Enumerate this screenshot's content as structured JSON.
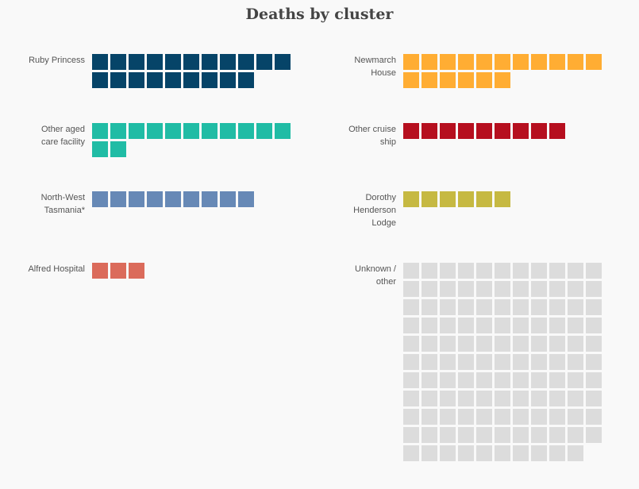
{
  "chart_data": {
    "type": "waffle",
    "title": "Deaths by cluster",
    "unit_per_square": 1,
    "columns_per_row": 11,
    "series": [
      {
        "name": "Ruby Princess",
        "value": 20,
        "color": "#064468"
      },
      {
        "name": "Newmarch\nHouse",
        "value": 17,
        "color": "#ffad33"
      },
      {
        "name": "Other aged\ncare facility",
        "value": 13,
        "color": "#20bca5"
      },
      {
        "name": "Other cruise\nship",
        "value": 9,
        "color": "#b60f1f"
      },
      {
        "name": "North-West\nTasmania*",
        "value": 9,
        "color": "#6789b6"
      },
      {
        "name": "Dorothy\nHenderson\nLodge",
        "value": 6,
        "color": "#c6b942"
      },
      {
        "name": "Alfred Hospital",
        "value": 3,
        "color": "#db6b5b"
      },
      {
        "name": "Unknown /\nother",
        "value": 120,
        "color": "#dcdcdc"
      }
    ]
  }
}
